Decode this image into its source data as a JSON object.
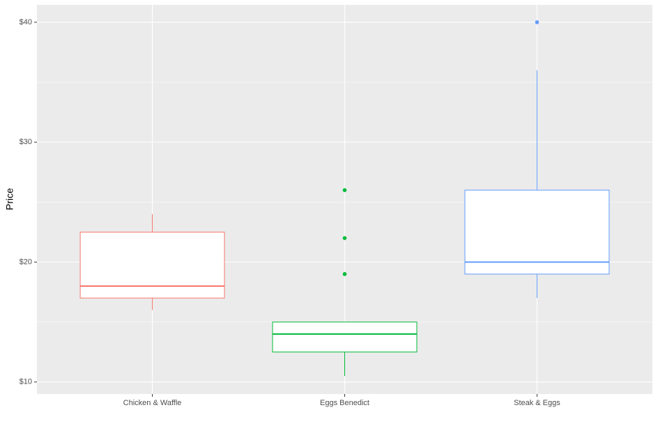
{
  "chart_data": {
    "type": "boxplot",
    "y_label": "Price",
    "categories": [
      "Chicken & Waffle",
      "Eggs Benedict",
      "Steak & Eggs"
    ],
    "colors": [
      "#F8766D",
      "#00BA38",
      "#619CFF"
    ],
    "boxes": [
      {
        "min": 16,
        "q1": 17,
        "median": 18,
        "q3": 22.5,
        "max": 24,
        "outliers": []
      },
      {
        "min": 10.5,
        "q1": 12.5,
        "median": 14,
        "q3": 15,
        "max": 15,
        "outliers": [
          19,
          22,
          26
        ]
      },
      {
        "min": 17,
        "q1": 19,
        "median": 20,
        "q3": 26,
        "max": 36,
        "outliers": [
          40
        ]
      }
    ],
    "ylim": [
      9,
      41.45
    ],
    "yticks": [
      {
        "value": 10,
        "label": "$10"
      },
      {
        "value": 20,
        "label": "$20"
      },
      {
        "value": 30,
        "label": "$30"
      },
      {
        "value": 40,
        "label": "$40"
      }
    ],
    "grid": true,
    "minor_grid": true
  }
}
